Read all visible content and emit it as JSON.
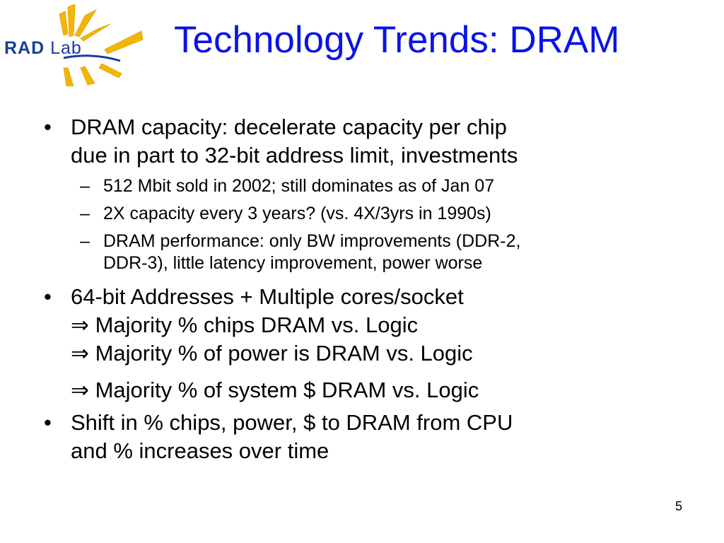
{
  "logo": {
    "text_part1": "RAD",
    "text_part2": "Lab",
    "color_blue": "#1A3C9C",
    "color_yellow": "#F2B705"
  },
  "slide": {
    "title": "Technology Trends: DRAM",
    "title_color": "#0A14E6",
    "page_number": "5"
  },
  "bullets": [
    {
      "lines": [
        "DRAM capacity: decelerate capacity per chip",
        "due in part to 32-bit address limit, investments"
      ],
      "subs": [
        {
          "lines": [
            "512 Mbit sold in 2002; still dominates as of Jan 07"
          ]
        },
        {
          "lines": [
            "2X capacity every 3 years? (vs. 4X/3yrs in 1990s)"
          ]
        },
        {
          "lines": [
            "DRAM performance: only BW improvements (DDR-2,",
            "DDR-3), little latency improvement, power worse"
          ]
        }
      ]
    },
    {
      "lines": [
        "64-bit Addresses + Multiple cores/socket"
      ],
      "implications": [
        "Majority % chips DRAM vs. Logic",
        "Majority % of power is DRAM vs. Logic",
        "Majority % of system $ DRAM vs. Logic"
      ]
    },
    {
      "lines": [
        "Shift in % chips, power, $ to DRAM from CPU",
        "and % increases over time"
      ]
    }
  ],
  "symbols": {
    "bullet": "•",
    "dash": "–",
    "implies": "⇒"
  }
}
